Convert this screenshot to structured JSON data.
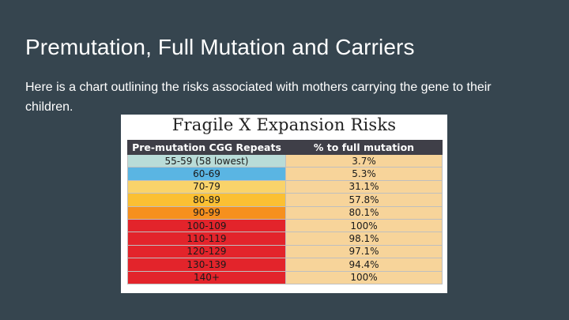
{
  "slide": {
    "title": "Premutation, Full Mutation and Carriers",
    "body": "Here is a chart outlining the risks associated with mothers carrying the gene to their children."
  },
  "figure": {
    "title": "Fragile X Expansion Risks"
  },
  "chart_data": {
    "type": "table",
    "title": "Fragile X Expansion Risks",
    "columns": [
      "Pre-mutation CGG Repeats",
      "% to full mutation"
    ],
    "rows": [
      {
        "repeats": "55-59 (58 lowest)",
        "percent": "3.7%",
        "color": "#b9dcd8"
      },
      {
        "repeats": "60-69",
        "percent": "5.3%",
        "color": "#5ab5e3"
      },
      {
        "repeats": "70-79",
        "percent": "31.1%",
        "color": "#f9d36a"
      },
      {
        "repeats": "80-89",
        "percent": "57.8%",
        "color": "#fbc033"
      },
      {
        "repeats": "90-99",
        "percent": "80.1%",
        "color": "#f6901e"
      },
      {
        "repeats": "100-109",
        "percent": "100%",
        "color": "#e3242b"
      },
      {
        "repeats": "110-119",
        "percent": "98.1%",
        "color": "#e3242b"
      },
      {
        "repeats": "120-129",
        "percent": "97.1%",
        "color": "#e3242b"
      },
      {
        "repeats": "130-139",
        "percent": "94.4%",
        "color": "#e3242b"
      },
      {
        "repeats": "140+",
        "percent": "100%",
        "color": "#e3242b"
      }
    ]
  }
}
